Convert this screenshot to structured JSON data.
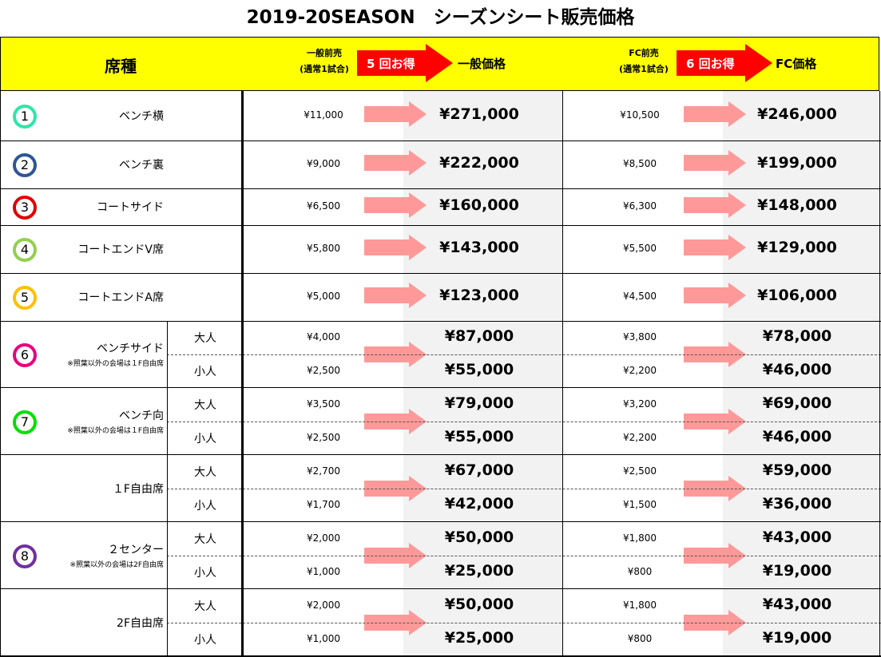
{
  "title": "2019-20SEASON　シーズンシート販売価格",
  "header": {
    "category": "席種",
    "general_pre": "一般前売",
    "general_pre_sub": "(通常1試合)",
    "general_gain": "5 回お得",
    "general_price": "一般価格",
    "fc_pre": "FC前売",
    "fc_pre_sub": "(通常1試合)",
    "fc_gain": "6 回お得",
    "fc_price": "FC価格"
  },
  "colors": {
    "header_bg": "#ffff00",
    "gain_arrow": "#ff0000",
    "price_arrow": "#ff9999",
    "shade": "#f2f2f2"
  },
  "rows": [
    {
      "num": "1",
      "color": "#2ee6a6",
      "name": "ベンチ横",
      "gen_pre": "¥11,000",
      "gen_price": "¥271,000",
      "fc_pre": "¥10,500",
      "fc_price": "¥246,000"
    },
    {
      "num": "2",
      "color": "#2f5597",
      "name": "ベンチ裏",
      "gen_pre": "¥9,000",
      "gen_price": "¥222,000",
      "fc_pre": "¥8,500",
      "fc_price": "¥199,000"
    },
    {
      "num": "3",
      "color": "#e00000",
      "name": "コートサイド",
      "gen_pre": "¥6,500",
      "gen_price": "¥160,000",
      "fc_pre": "¥6,300",
      "fc_price": "¥148,000"
    },
    {
      "num": "4",
      "color": "#92d050",
      "name": "コートエンドV席",
      "gen_pre": "¥5,800",
      "gen_price": "¥143,000",
      "fc_pre": "¥5,500",
      "fc_price": "¥129,000"
    },
    {
      "num": "5",
      "color": "#ffc000",
      "name": "コートエンドA席",
      "gen_pre": "¥5,000",
      "gen_price": "¥123,000",
      "fc_pre": "¥4,500",
      "fc_price": "¥106,000"
    }
  ],
  "split_rows": [
    {
      "num": "6",
      "color": "#e6007e",
      "name": "ベンチサイド",
      "note": "※照葉以外の会場は１F自由席",
      "adult": "大人",
      "child": "小人",
      "adult_gen_pre": "¥4,000",
      "adult_gen_price": "¥87,000",
      "adult_fc_pre": "¥3,800",
      "adult_fc_price": "¥78,000",
      "child_gen_pre": "¥2,500",
      "child_gen_price": "¥55,000",
      "child_fc_pre": "¥2,200",
      "child_fc_price": "¥46,000"
    },
    {
      "num": "7",
      "color": "#00e000",
      "name": "ベンチ向",
      "note": "※照葉以外の会場は１F自由席",
      "adult": "大人",
      "child": "小人",
      "adult_gen_pre": "¥3,500",
      "adult_gen_price": "¥79,000",
      "adult_fc_pre": "¥3,200",
      "adult_fc_price": "¥69,000",
      "child_gen_pre": "¥2,500",
      "child_gen_price": "¥55,000",
      "child_fc_pre": "¥2,200",
      "child_fc_price": "¥46,000"
    },
    {
      "num": "",
      "color": "",
      "name": "１F自由席",
      "note": "",
      "adult": "大人",
      "child": "小人",
      "adult_gen_pre": "¥2,700",
      "adult_gen_price": "¥67,000",
      "adult_fc_pre": "¥2,500",
      "adult_fc_price": "¥59,000",
      "child_gen_pre": "¥1,700",
      "child_gen_price": "¥42,000",
      "child_fc_pre": "¥1,500",
      "child_fc_price": "¥36,000"
    },
    {
      "num": "8",
      "color": "#7030a0",
      "name": "２センター",
      "note": "※照葉以外の会場は2F自由席",
      "adult": "大人",
      "child": "小人",
      "adult_gen_pre": "¥2,000",
      "adult_gen_price": "¥50,000",
      "adult_fc_pre": "¥1,800",
      "adult_fc_price": "¥43,000",
      "child_gen_pre": "¥1,000",
      "child_gen_price": "¥25,000",
      "child_fc_pre": "¥800",
      "child_fc_price": "¥19,000"
    },
    {
      "num": "",
      "color": "",
      "name": "2F自由席",
      "note": "",
      "adult": "大人",
      "child": "小人",
      "adult_gen_pre": "¥2,000",
      "adult_gen_price": "¥50,000",
      "adult_fc_pre": "¥1,800",
      "adult_fc_price": "¥43,000",
      "child_gen_pre": "¥1,000",
      "child_gen_price": "¥25,000",
      "child_fc_pre": "¥800",
      "child_fc_price": "¥19,000"
    }
  ]
}
